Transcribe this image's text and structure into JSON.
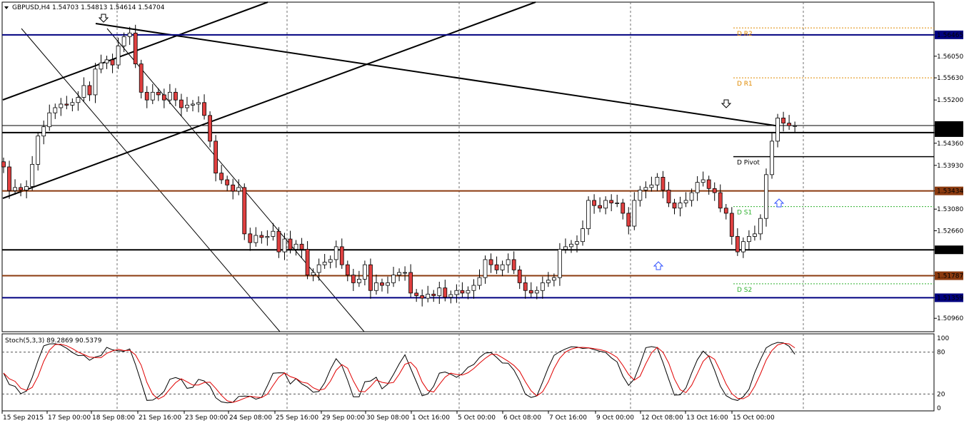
{
  "header": {
    "symbol_line": "GBPUSD,H4  1.54703  1.54813  1.54614  1.54704",
    "triangle_icon": "triangle-down-icon"
  },
  "stoch": {
    "label": "Stoch(5,3,3) 89.2869 90.5379"
  },
  "price_axis": {
    "ticks": [
      "1.56465",
      "1.56050",
      "1.55630",
      "1.55200",
      "1.54704",
      "1.54566",
      "1.54360",
      "1.53930",
      "1.53434",
      "1.53080",
      "1.52660",
      "1.52290",
      "1.51787",
      "1.51359",
      "1.50960"
    ],
    "highlighted": [
      "1.56465",
      "1.54704",
      "1.54566",
      "1.53434",
      "1.52290",
      "1.51787",
      "1.51359"
    ]
  },
  "stoch_axis": {
    "ticks": [
      "100",
      "80",
      "20",
      "0"
    ]
  },
  "time_axis": {
    "labels": [
      "15 Sep 2015",
      "17 Sep 00:00",
      "18 Sep 08:00",
      "21 Sep 16:00",
      "23 Sep 00:00",
      "24 Sep 08:00",
      "25 Sep 16:00",
      "29 Sep 00:00",
      "30 Sep 08:00",
      "1 Oct 16:00",
      "5 Oct 00:00",
      "6 Oct 08:00",
      "7 Oct 16:00",
      "9 Oct 00:00",
      "12 Oct 08:00",
      "13 Oct 16:00",
      "15 Oct 00:00"
    ]
  },
  "pivots": [
    {
      "name": "D R2",
      "value": 1.566,
      "color": "#e08a00"
    },
    {
      "name": "D R1",
      "value": 1.5563,
      "color": "#e08a00"
    },
    {
      "name": "D Pivot",
      "value": 1.541,
      "color": "#000000"
    },
    {
      "name": "D S1",
      "value": 1.5313,
      "color": "#2fb02f"
    },
    {
      "name": "D S2",
      "value": 1.5163,
      "color": "#2fb02f"
    }
  ],
  "colors": {
    "bull": "#ffffff",
    "bear": "#e04040",
    "navy": "#000080",
    "brown": "#8b3a0f",
    "stoch_main": "#000000",
    "stoch_signal": "#e00000"
  },
  "chart_data": {
    "type": "candlestick",
    "symbol": "GBPUSD",
    "timeframe": "H4",
    "last": {
      "open": 1.54703,
      "high": 1.54813,
      "low": 1.54614,
      "close": 1.54704
    },
    "ylim": [
      1.507,
      1.571
    ],
    "horizontal_levels": [
      {
        "value": 1.56465,
        "color": "navy"
      },
      {
        "value": 1.54704,
        "color": "black"
      },
      {
        "value": 1.54566,
        "color": "black"
      },
      {
        "value": 1.53434,
        "color": "brown"
      },
      {
        "value": 1.5229,
        "color": "black"
      },
      {
        "value": 1.51787,
        "color": "brown"
      },
      {
        "value": 1.51359,
        "color": "navy"
      }
    ],
    "closes": [
      1.539,
      1.5344,
      1.535,
      1.5345,
      1.5352,
      1.5395,
      1.545,
      1.5468,
      1.5495,
      1.5505,
      1.5512,
      1.551,
      1.5515,
      1.5525,
      1.5548,
      1.553,
      1.558,
      1.5592,
      1.5598,
      1.5588,
      1.5625,
      1.5643,
      1.565,
      1.559,
      1.5535,
      1.552,
      1.5535,
      1.553,
      1.552,
      1.5535,
      1.552,
      1.5505,
      1.551,
      1.5512,
      1.5515,
      1.549,
      1.544,
      1.5378,
      1.5365,
      1.5355,
      1.5343,
      1.535,
      1.526,
      1.5243,
      1.5257,
      1.5253,
      1.5255,
      1.5265,
      1.5225,
      1.525,
      1.523,
      1.524,
      1.523,
      1.518,
      1.5185,
      1.52,
      1.5205,
      1.521,
      1.5235,
      1.52,
      1.518,
      1.5165,
      1.5172,
      1.52,
      1.515,
      1.5165,
      1.516,
      1.5165,
      1.518,
      1.5185,
      1.5185,
      1.5145,
      1.514,
      1.5135,
      1.5143,
      1.514,
      1.5155,
      1.5137,
      1.5142,
      1.515,
      1.5145,
      1.515,
      1.516,
      1.5175,
      1.521,
      1.52,
      1.519,
      1.52,
      1.521,
      1.519,
      1.5165,
      1.515,
      1.5145,
      1.515,
      1.5165,
      1.517,
      1.5175,
      1.523,
      1.5235,
      1.524,
      1.5245,
      1.527,
      1.5325,
      1.5315,
      1.531,
      1.5325,
      1.532,
      1.532,
      1.53,
      1.5275,
      1.5325,
      1.5345,
      1.535,
      1.5355,
      1.537,
      1.5345,
      1.532,
      1.531,
      1.532,
      1.5325,
      1.534,
      1.536,
      1.5365,
      1.5348,
      1.534,
      1.531,
      1.53,
      1.5255,
      1.5225,
      1.5245,
      1.5255,
      1.526,
      1.529,
      1.5375,
      1.544,
      1.5485,
      1.5475,
      1.547,
      1.547
    ],
    "stoch_ylim": [
      0,
      100
    ],
    "stoch_levels": [
      20,
      80
    ],
    "stoch_current": {
      "main": 89.2869,
      "signal": 90.5379
    }
  }
}
